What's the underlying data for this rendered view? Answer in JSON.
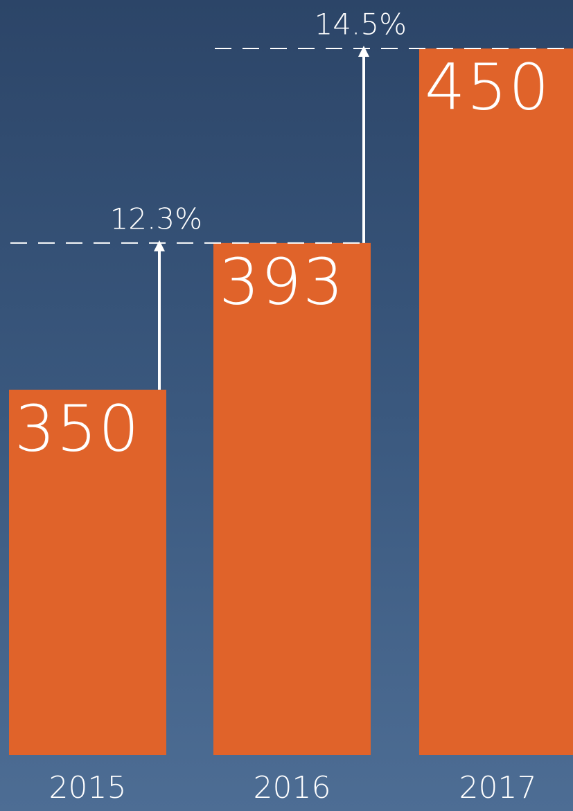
{
  "chart_data": {
    "type": "bar",
    "categories": [
      "2015",
      "2016",
      "2017"
    ],
    "values": [
      350,
      393,
      450
    ],
    "color": "#e0632a",
    "ylim": [
      243,
      450
    ],
    "annotations": [
      "12.3%",
      "14.5%"
    ]
  }
}
